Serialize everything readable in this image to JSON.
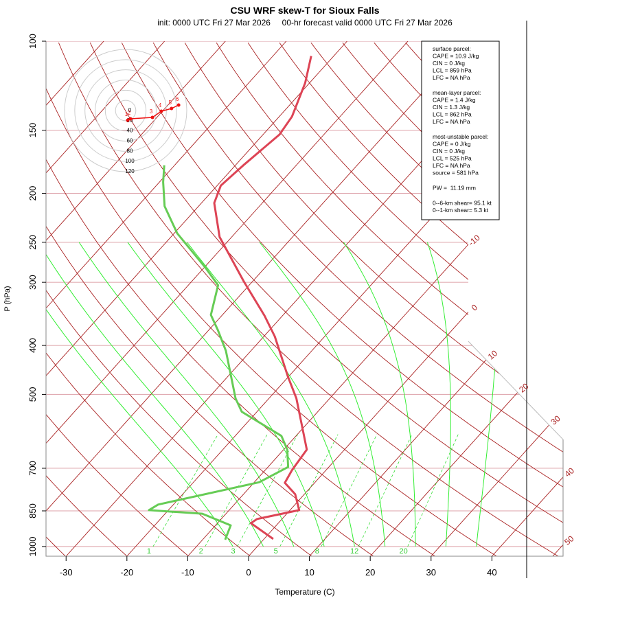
{
  "chart_data": {
    "type": "skewt",
    "title": "CSU WRF skew-T for Sioux Falls",
    "subtitle": "init: 0000 UTC Fri 27 Mar 2026     00-hr forecast valid 0000 UTC Fri 27 Mar 2026",
    "x_label": "Temperature (C)",
    "y_label": "P (hPa)",
    "log_y": true,
    "xlim": [
      -33.3,
      51.7
    ],
    "ylim": [
      1045,
      100
    ],
    "xticks": [
      -30,
      -20,
      -10,
      0,
      10,
      20,
      30,
      40
    ],
    "yticks": [
      100,
      150,
      200,
      250,
      300,
      400,
      500,
      700,
      850,
      1000
    ],
    "isotherm_labels": [
      -10,
      0,
      10,
      20,
      30,
      40,
      50
    ],
    "mixing_ratio_labels": [
      1,
      2,
      3,
      5,
      8,
      12,
      20
    ],
    "series": [
      {
        "color": "#dd4455",
        "pressure": [
          966,
          899,
          882,
          847,
          788,
          748,
          706,
          643,
          577,
          509,
          461,
          384,
          349,
          299,
          244,
          209,
          193,
          176,
          153,
          141,
          121,
          107
        ],
        "values": [
          1.5,
          -4.5,
          -4.1,
          1.5,
          -1.5,
          -4.9,
          -5.6,
          -6.2,
          -10.5,
          -15.5,
          -20.1,
          -28.2,
          -33,
          -41.4,
          -52,
          -57.9,
          -59.4,
          -58.7,
          -57.3,
          -57.9,
          -60.7,
          -63.7
        ]
      },
      {
        "color": "#66cc55",
        "pressure": [
          969,
          908,
          861,
          847,
          826,
          746,
          696,
          643,
          604,
          541,
          509,
          410,
          373,
          348,
          304,
          281,
          240,
          212,
          190,
          176
        ],
        "values": [
          -6.3,
          -7.5,
          -13.9,
          -23.2,
          -22.5,
          -9.2,
          -6.7,
          -9.4,
          -12.4,
          -22.5,
          -25.5,
          -34.1,
          -38.5,
          -41.9,
          -45.1,
          -49.7,
          -59.5,
          -65.6,
          -69.4,
          -71.7
        ]
      }
    ],
    "hodograph": {
      "ring_labels": [
        0,
        20,
        40,
        60,
        80,
        100,
        120
      ],
      "color": "#ee1111",
      "u": [
        4,
        9.4,
        52.6,
        70,
        90,
        104
      ],
      "v": [
        -19,
        -16.2,
        -13.5,
        -1.3,
        4,
        10.8
      ],
      "heights_km": [
        1,
        2,
        3,
        4,
        5,
        6
      ]
    },
    "info_box": [
      [
        "surface parcel:",
        "CAPE = 10.9 J/kg",
        "CIN = 0 J/kg",
        "LCL = 859 hPa",
        "LFC = NA hPa"
      ],
      [
        "mean-layer parcel:",
        "CAPE = 1.4 J/kg",
        "CIN = 1.3 J/kg",
        "LCL = 862 hPa",
        "LFC = NA hPa"
      ],
      [
        "most-unstable parcel:",
        "CAPE = 0 J/kg",
        "CIN = 0 J/kg",
        "LCL = 525 hPa",
        "LFC = NA hPa",
        "source = 581 hPa"
      ],
      [
        "PW =  11.19 mm"
      ],
      [
        "0--6-km shear= 95.1 kt",
        "0--1-km shear= 5.3 kt"
      ]
    ]
  }
}
